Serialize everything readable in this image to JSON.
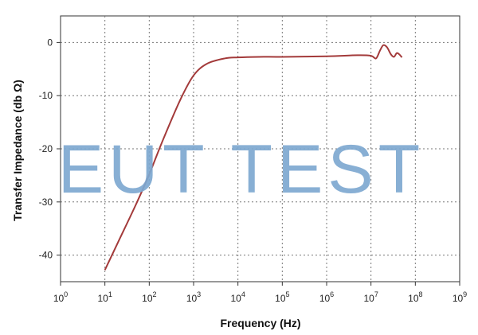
{
  "chart_data": {
    "type": "line",
    "title": "",
    "xlabel": "Frequency (Hz)",
    "ylabel": "Transfer Impedance (db Ω)",
    "x_scale": "log",
    "xlim": [
      1,
      1000000000
    ],
    "ylim": [
      -45,
      5
    ],
    "x_ticks": [
      {
        "value": 1,
        "base": "10",
        "exp": "0"
      },
      {
        "value": 10,
        "base": "10",
        "exp": "1"
      },
      {
        "value": 100,
        "base": "10",
        "exp": "2"
      },
      {
        "value": 1000,
        "base": "10",
        "exp": "3"
      },
      {
        "value": 10000,
        "base": "10",
        "exp": "4"
      },
      {
        "value": 100000,
        "base": "10",
        "exp": "5"
      },
      {
        "value": 1000000,
        "base": "10",
        "exp": "6"
      },
      {
        "value": 10000000,
        "base": "10",
        "exp": "7"
      },
      {
        "value": 100000000,
        "base": "10",
        "exp": "8"
      },
      {
        "value": 1000000000,
        "base": "10",
        "exp": "9"
      }
    ],
    "y_ticks": [
      {
        "value": 0,
        "label": "0"
      },
      {
        "value": -10,
        "label": "-10"
      },
      {
        "value": -20,
        "label": "-20"
      },
      {
        "value": -30,
        "label": "-30"
      },
      {
        "value": -40,
        "label": "-40"
      }
    ],
    "grid": true,
    "series": [
      {
        "color": "#a33a3a",
        "points": [
          [
            10,
            -42.8
          ],
          [
            20,
            -37.5
          ],
          [
            50,
            -30.5
          ],
          [
            100,
            -24.8
          ],
          [
            200,
            -18.5
          ],
          [
            500,
            -10.8
          ],
          [
            1000,
            -6.2
          ],
          [
            2000,
            -4.0
          ],
          [
            5000,
            -3.0
          ],
          [
            10000,
            -2.8
          ],
          [
            30000,
            -2.7
          ],
          [
            100000,
            -2.7
          ],
          [
            1000000,
            -2.6
          ],
          [
            5000000,
            -2.4
          ],
          [
            10000000,
            -2.5
          ],
          [
            13000000,
            -3.0
          ],
          [
            16000000,
            -1.5
          ],
          [
            19000000,
            -0.5
          ],
          [
            23000000,
            -0.9
          ],
          [
            28000000,
            -2.2
          ],
          [
            33000000,
            -2.7
          ],
          [
            38000000,
            -2.0
          ],
          [
            43000000,
            -2.2
          ],
          [
            50000000,
            -2.8
          ]
        ]
      }
    ]
  },
  "watermark": {
    "text": "EUT TEST",
    "color": "#7ea9d1"
  }
}
